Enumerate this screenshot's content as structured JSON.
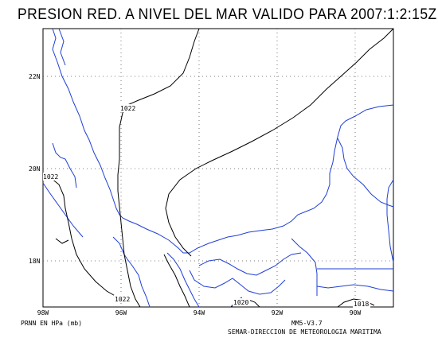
{
  "title": "PRESION RED. A NIVEL DEL MAR VALIDO PARA 2007:1:2:15Z",
  "map": {
    "lat_labels": [
      "22N",
      "20N",
      "18N"
    ],
    "lon_labels": [
      "98W",
      "96W",
      "94W",
      "92W",
      "90W"
    ],
    "isobar_labels": [
      "1022",
      "1022",
      "1022",
      "1020",
      "1018"
    ],
    "coast_color": "#1f3fd6",
    "isobar_color": "#000000",
    "grid": "dotted"
  },
  "footer": {
    "units": "PRNN EN HPa (mb)",
    "model": "MM5-V3.7",
    "source": "SEMAR-DIRECCION DE METEOROLOGIA MARITIMA"
  }
}
